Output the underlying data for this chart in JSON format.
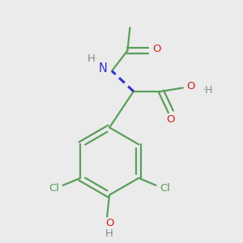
{
  "bg_color": "#ebebeb",
  "bond_color": "#5a9e5a",
  "n_color": "#3333cc",
  "o_color": "#cc2222",
  "h_color": "#888888",
  "cl_color": "#5a9e5a",
  "line_width": 1.6,
  "figsize": [
    3.0,
    3.0
  ],
  "dpi": 100,
  "xlim": [
    0,
    10
  ],
  "ylim": [
    0,
    10
  ]
}
